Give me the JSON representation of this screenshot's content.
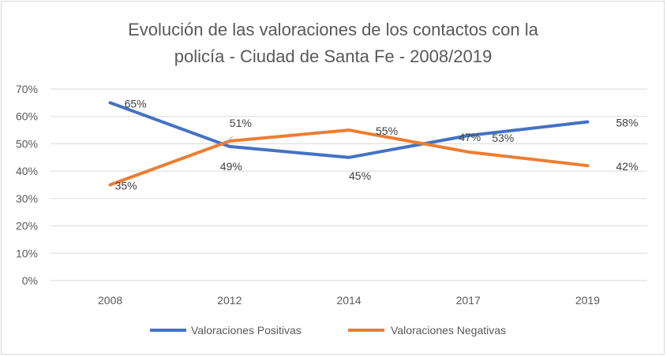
{
  "chart_data": {
    "type": "line",
    "title": "Evolución de las valoraciones de los contactos con la policía - Ciudad de Santa Fe - 2008/2019",
    "title_lines": [
      "Evolución de las valoraciones de los contactos con la",
      "policía - Ciudad de Santa Fe - 2008/2019"
    ],
    "categories": [
      "2008",
      "2012",
      "2014",
      "2017",
      "2019"
    ],
    "ylim": [
      0,
      70
    ],
    "y_ticks": [
      0,
      10,
      20,
      30,
      40,
      50,
      60,
      70
    ],
    "y_tick_labels": [
      "0%",
      "10%",
      "20%",
      "30%",
      "40%",
      "50%",
      "60%",
      "70%"
    ],
    "grid": true,
    "legend_position": "bottom",
    "series": [
      {
        "name": "Valoraciones Positivas",
        "color": "#4472c4",
        "values": [
          65,
          49,
          45,
          53,
          58
        ],
        "labels": [
          "65%",
          "49%",
          "45%",
          "53%",
          "58%"
        ]
      },
      {
        "name": "Valoraciones Negativas",
        "color": "#ed7d31",
        "values": [
          35,
          51,
          55,
          47,
          42
        ],
        "labels": [
          "35%",
          "51%",
          "55%",
          "47%",
          "42%"
        ]
      }
    ]
  }
}
